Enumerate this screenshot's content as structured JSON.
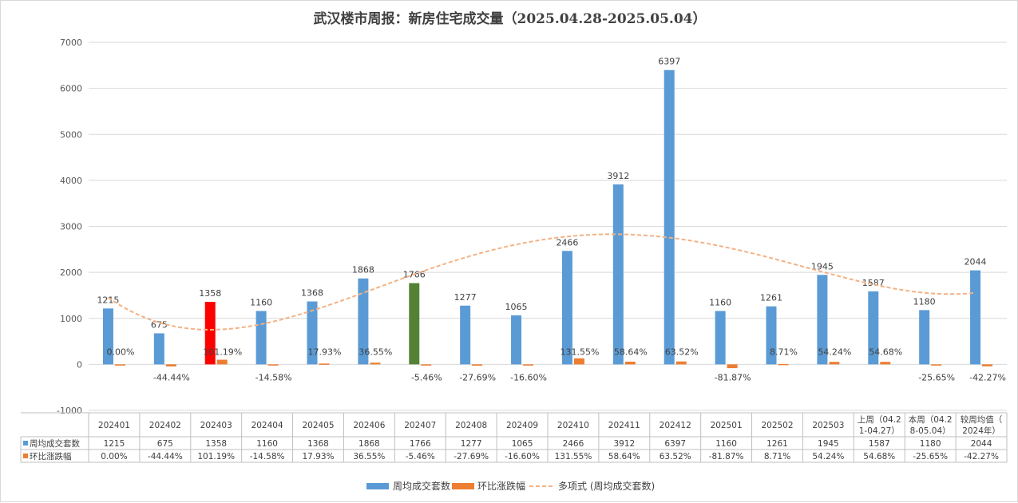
{
  "title": "武汉楼市周报：新房住宅成交量（2025.04.28-2025.05.04）",
  "chart_data": {
    "type": "bar",
    "categories": [
      "202401",
      "202402",
      "202403",
      "202404",
      "202405",
      "202406",
      "202407",
      "202408",
      "202409",
      "202410",
      "202411",
      "202412",
      "202501",
      "202502",
      "202503",
      "上周（04.21-04.27）",
      "本周（04.28-05.04）",
      "较周均值（2024年）"
    ],
    "category_lines": [
      [
        "202401"
      ],
      [
        "202402"
      ],
      [
        "202403"
      ],
      [
        "202404"
      ],
      [
        "202405"
      ],
      [
        "202406"
      ],
      [
        "202407"
      ],
      [
        "202408"
      ],
      [
        "202409"
      ],
      [
        "202410"
      ],
      [
        "202411"
      ],
      [
        "202412"
      ],
      [
        "202501"
      ],
      [
        "202502"
      ],
      [
        "202503"
      ],
      [
        "上周（04.2",
        "1-04.27）"
      ],
      [
        "本周（04.2",
        "8-05.04）"
      ],
      [
        "较周均值（",
        "2024年）"
      ]
    ],
    "series": [
      {
        "name": "周均成交套数",
        "color": "#5b9bd5",
        "values": [
          1215,
          675,
          1358,
          1160,
          1368,
          1868,
          1766,
          1277,
          1065,
          2466,
          3912,
          6397,
          1160,
          1261,
          1945,
          1587,
          1180,
          2044
        ],
        "highlight_colors": {
          "2": "#ff0000",
          "6": "#548235"
        }
      },
      {
        "name": "环比涨跌幅",
        "color": "#ed7d31",
        "values": [
          0.0,
          -44.44,
          101.19,
          -14.58,
          17.93,
          36.55,
          -5.46,
          -27.69,
          -16.6,
          131.55,
          58.64,
          63.52,
          -81.87,
          8.71,
          54.24,
          54.68,
          -25.65,
          -42.27
        ],
        "labels": [
          "0.00%",
          "-44.44%",
          "101.19%",
          "-14.58%",
          "17.93%",
          "36.55%",
          "-5.46%",
          "-27.69%",
          "-16.60%",
          "131.55%",
          "58.64%",
          "63.52%",
          "-81.87%",
          "8.71%",
          "54.24%",
          "54.68%",
          "-25.65%",
          "-42.27%"
        ]
      }
    ],
    "trendline": {
      "type": "polynomial",
      "color": "#f4b183",
      "legend": "多项式 (周均成交套数)"
    },
    "ylim": [
      -1000,
      7000
    ],
    "yticks": [
      -1000,
      0,
      1000,
      2000,
      3000,
      4000,
      5000,
      6000,
      7000
    ],
    "grid": true,
    "legend_position": "bottom",
    "data_table": true
  }
}
